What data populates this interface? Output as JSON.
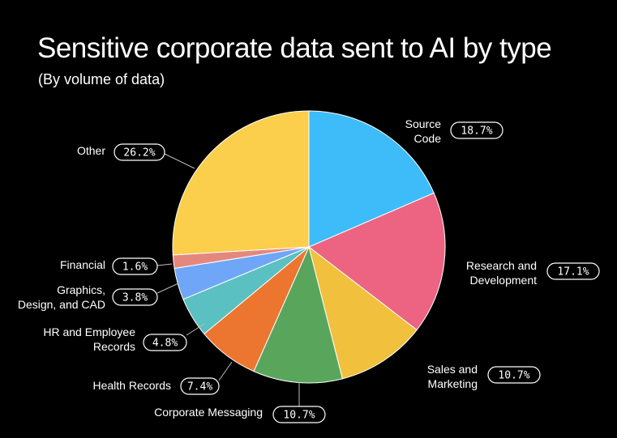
{
  "title": "Sensitive corporate data sent to AI by type",
  "subtitle": "(By volume of data)",
  "chart_data": {
    "type": "pie",
    "title": "Sensitive corporate data sent to AI by type",
    "subtitle": "(By volume of data)",
    "slices": [
      {
        "label": "Source Code",
        "label_lines": [
          "Source",
          "Code"
        ],
        "value": 18.7,
        "display": "18.7%",
        "color": "#3EBCFA"
      },
      {
        "label": "Research and Development",
        "label_lines": [
          "Research and",
          "Development"
        ],
        "value": 17.1,
        "display": "17.1%",
        "color": "#EC6481"
      },
      {
        "label": "Sales and Marketing",
        "label_lines": [
          "Sales and",
          "Marketing"
        ],
        "value": 10.7,
        "display": "10.7%",
        "color": "#F1C03D"
      },
      {
        "label": "Corporate Messaging",
        "label_lines": [
          "Corporate Messaging"
        ],
        "value": 10.7,
        "display": "10.7%",
        "color": "#5AA55C"
      },
      {
        "label": "Health Records",
        "label_lines": [
          "Health Records"
        ],
        "value": 7.4,
        "display": "7.4%",
        "color": "#EC7630"
      },
      {
        "label": "HR and Employee Records",
        "label_lines": [
          "HR and Employee",
          "Records"
        ],
        "value": 4.8,
        "display": "4.8%",
        "color": "#5BC0C1"
      },
      {
        "label": "Graphics, Design, and CAD",
        "label_lines": [
          "Graphics,",
          "Design, and CAD"
        ],
        "value": 3.8,
        "display": "3.8%",
        "color": "#6FA6F7"
      },
      {
        "label": "Financial",
        "label_lines": [
          "Financial"
        ],
        "value": 1.6,
        "display": "1.6%",
        "color": "#E4887E"
      },
      {
        "label": "Other",
        "label_lines": [
          "Other"
        ],
        "value": 26.2,
        "display": "26.2%",
        "color": "#FBCE4B"
      }
    ],
    "start_angle": "12 o'clock",
    "direction": "clockwise"
  }
}
